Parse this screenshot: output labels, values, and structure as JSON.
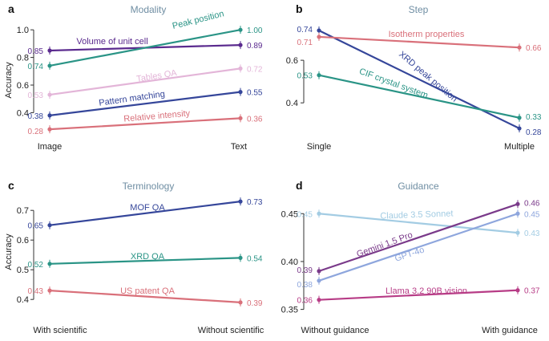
{
  "chart_data": [
    {
      "type": "line",
      "panel_label": "a",
      "title": "Modality",
      "ylabel": "Accuracy",
      "categories": [
        "Image",
        "Text"
      ],
      "ylim": [
        0.24,
        1.03
      ],
      "yticks": [
        0.4,
        0.6,
        0.8,
        1.0
      ],
      "ytick_labels": [
        "0.4",
        "0.6",
        "0.8",
        "1.0"
      ],
      "series": [
        {
          "name": "Volume of unit cell",
          "values": [
            0.85,
            0.89
          ],
          "labels": [
            "0.85",
            "0.89"
          ],
          "color": "#5a2a8e"
        },
        {
          "name": "Peak position",
          "values": [
            0.74,
            1.0
          ],
          "labels": [
            "0.74",
            "1.00"
          ],
          "color": "#2a9486"
        },
        {
          "name": "Tables QA",
          "values": [
            0.53,
            0.72
          ],
          "labels": [
            "0.53",
            "0.72"
          ],
          "color": "#e3b5d8"
        },
        {
          "name": "Pattern matching",
          "values": [
            0.38,
            0.55
          ],
          "labels": [
            "0.38",
            "0.55"
          ],
          "color": "#35469a"
        },
        {
          "name": "Relative intensity",
          "values": [
            0.28,
            0.36
          ],
          "labels": [
            "0.28",
            "0.36"
          ],
          "color": "#d9707a"
        }
      ]
    },
    {
      "type": "line",
      "panel_label": "b",
      "title": "Step",
      "ylabel": "",
      "categories": [
        "Single",
        "Multiple"
      ],
      "ylim": [
        0.25,
        0.77
      ],
      "yticks": [
        0.4,
        0.6
      ],
      "ytick_labels": [
        "0.4",
        "0.6"
      ],
      "series": [
        {
          "name": "XRD peak position",
          "values": [
            0.74,
            0.28
          ],
          "labels": [
            "0.74",
            "0.28"
          ],
          "color": "#35469a"
        },
        {
          "name": "Isotherm properties",
          "values": [
            0.71,
            0.66
          ],
          "labels": [
            "0.71",
            "0.66"
          ],
          "color": "#d9707a"
        },
        {
          "name": "CIF crystal system",
          "values": [
            0.53,
            0.33
          ],
          "labels": [
            "0.53",
            "0.33"
          ],
          "color": "#2a9486"
        }
      ]
    },
    {
      "type": "line",
      "panel_label": "c",
      "title": "Terminology",
      "ylabel": "Accuracy",
      "categories": [
        "With scientific",
        "Without scientific"
      ],
      "ylim": [
        0.36,
        0.76
      ],
      "yticks": [
        0.4,
        0.5,
        0.6,
        0.7
      ],
      "ytick_labels": [
        "0.4",
        "0.5",
        "0.6",
        "0.7"
      ],
      "series": [
        {
          "name": "MOF QA",
          "values": [
            0.65,
            0.73
          ],
          "labels": [
            "0.65",
            "0.73"
          ],
          "color": "#35469a"
        },
        {
          "name": "XRD QA",
          "values": [
            0.52,
            0.54
          ],
          "labels": [
            "0.52",
            "0.54"
          ],
          "color": "#2a9486"
        },
        {
          "name": "US patent QA",
          "values": [
            0.43,
            0.39
          ],
          "labels": [
            "0.43",
            "0.39"
          ],
          "color": "#d9707a"
        }
      ]
    },
    {
      "type": "line",
      "panel_label": "d",
      "title": "Guidance",
      "ylabel": "",
      "categories": [
        "Without guidance",
        "With guidance"
      ],
      "ylim": [
        0.348,
        0.472
      ],
      "yticks": [
        0.35,
        0.4,
        0.45
      ],
      "ytick_labels": [
        "0.35",
        "0.40",
        "0.45"
      ],
      "series": [
        {
          "name": "Claude 3.5 Sonnet",
          "values": [
            0.45,
            0.43
          ],
          "labels": [
            "0.45",
            "0.43"
          ],
          "color": "#a3cce3"
        },
        {
          "name": "Gemini 1.5 Pro",
          "values": [
            0.39,
            0.46
          ],
          "labels": [
            "0.39",
            "0.46"
          ],
          "color": "#7a3a8a"
        },
        {
          "name": "GPT-4o",
          "values": [
            0.38,
            0.45
          ],
          "labels": [
            "0.38",
            "0.45"
          ],
          "color": "#8ea6dd"
        },
        {
          "name": "Llama 3.2 90B vision",
          "values": [
            0.36,
            0.37
          ],
          "labels": [
            "0.36",
            "0.37"
          ],
          "color": "#b73c86"
        }
      ]
    }
  ]
}
